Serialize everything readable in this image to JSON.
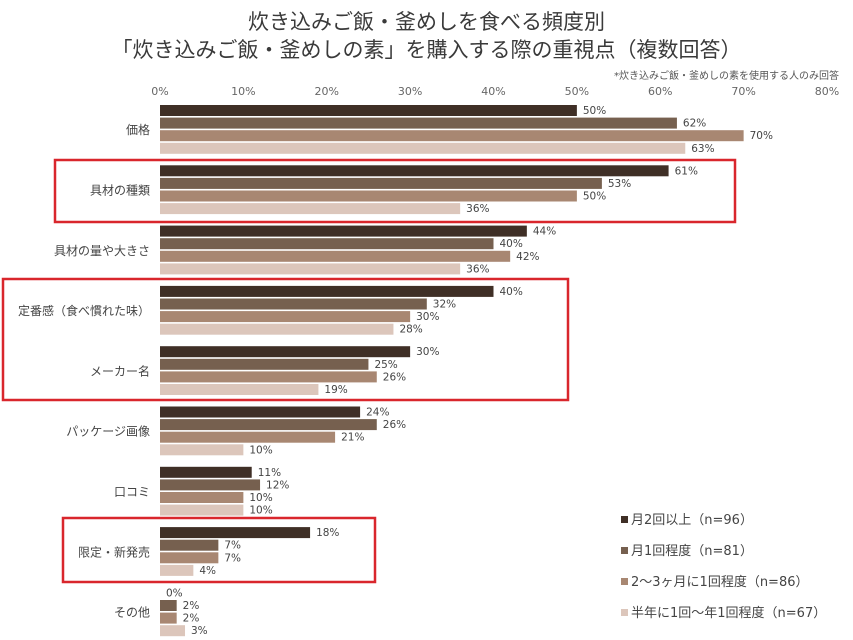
{
  "chart_data": {
    "type": "bar",
    "orientation": "horizontal",
    "title": [
      "炊き込みご飯・釜めしを食べる頻度別",
      "「炊き込みご飯・釜めしの素」を購入する際の重視点（複数回答）"
    ],
    "note": "*炊き込みご飯・釜めしの素を使用する人のみ回答",
    "xlim": [
      0,
      80
    ],
    "xticks": [
      "0%",
      "10%",
      "20%",
      "30%",
      "40%",
      "50%",
      "60%",
      "70%",
      "80%"
    ],
    "axis_position": "top",
    "grid": false,
    "legend_position": "bottom-right",
    "categories": [
      "価格",
      "具材の種類",
      "具材の量や大きさ",
      "定番感（食べ慣れた味）",
      "メーカー名",
      "パッケージ画像",
      "口コミ",
      "限定・新発売",
      "その他"
    ],
    "series": [
      {
        "name": "月2回以上（n=96）",
        "color": "#3f2f26",
        "values": [
          50,
          61,
          44,
          40,
          30,
          24,
          11,
          18,
          0
        ]
      },
      {
        "name": "月1回程度（n=81）",
        "color": "#76604f",
        "values": [
          62,
          53,
          40,
          32,
          25,
          26,
          12,
          7,
          2
        ]
      },
      {
        "name": "2～3ヶ月に1回程度（n=86）",
        "color": "#a88772",
        "values": [
          70,
          50,
          42,
          30,
          26,
          21,
          10,
          7,
          2
        ]
      },
      {
        "name": "半年に1回～年1回程度（n=67）",
        "color": "#dcc6bb",
        "values": [
          63,
          36,
          36,
          28,
          19,
          10,
          10,
          4,
          3
        ]
      }
    ],
    "highlighted_categories": [
      [
        "具材の種類"
      ],
      [
        "定番感（食べ慣れた味）",
        "メーカー名"
      ],
      [
        "限定・新発売"
      ]
    ],
    "highlight_color": "#d9262c"
  }
}
